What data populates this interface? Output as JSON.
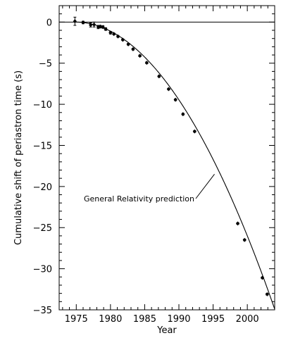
{
  "chart_data": {
    "type": "scatter",
    "title": "",
    "xlabel": "Year",
    "ylabel": "Cumulative shift of periastron time (s)",
    "xlim": [
      1972.5,
      2004
    ],
    "ylim": [
      -35,
      2.0
    ],
    "xticks": [
      1975,
      1980,
      1985,
      1990,
      1995,
      2000
    ],
    "yticks": [
      0,
      -5,
      -10,
      -15,
      -20,
      -25,
      -30,
      -35
    ],
    "grid": false,
    "zero_line": true,
    "annotation": {
      "text": "General Relativity prediction",
      "x": 1995.2,
      "y": -18.5
    },
    "series": [
      {
        "name": "",
        "kind": "points",
        "x": [
          1974.8,
          1976.0,
          1977.1,
          1977.6,
          1978.2,
          1978.5,
          1978.9,
          1979.3,
          1980.0,
          1980.5,
          1981.1,
          1981.8,
          1982.6,
          1983.3,
          1984.3,
          1985.3,
          1987.1,
          1988.5,
          1989.5,
          1990.6,
          1992.3,
          1998.6,
          1999.6,
          2002.2,
          2002.9
        ],
        "y": [
          0.1,
          -0.05,
          -0.35,
          -0.3,
          -0.6,
          -0.55,
          -0.6,
          -0.85,
          -1.3,
          -1.45,
          -1.75,
          -2.15,
          -2.7,
          -3.3,
          -4.1,
          -4.95,
          -6.6,
          -8.15,
          -9.45,
          -11.2,
          -13.3,
          -24.5,
          -26.5,
          -31.1,
          -33.1
        ],
        "yerr": [
          0.5,
          0.15,
          0.25,
          0.3,
          0.2,
          0.15,
          0.15,
          0.15,
          0.15,
          0.1,
          0.1,
          0.1,
          0.1,
          0.1,
          0.1,
          0.1,
          0.1,
          0.1,
          0.1,
          0.1,
          0.1,
          0.1,
          0.1,
          0.1,
          0.1
        ]
      },
      {
        "name": "General Relativity prediction",
        "kind": "curve",
        "x0": 1974.8,
        "coef": -0.04095
      }
    ]
  }
}
